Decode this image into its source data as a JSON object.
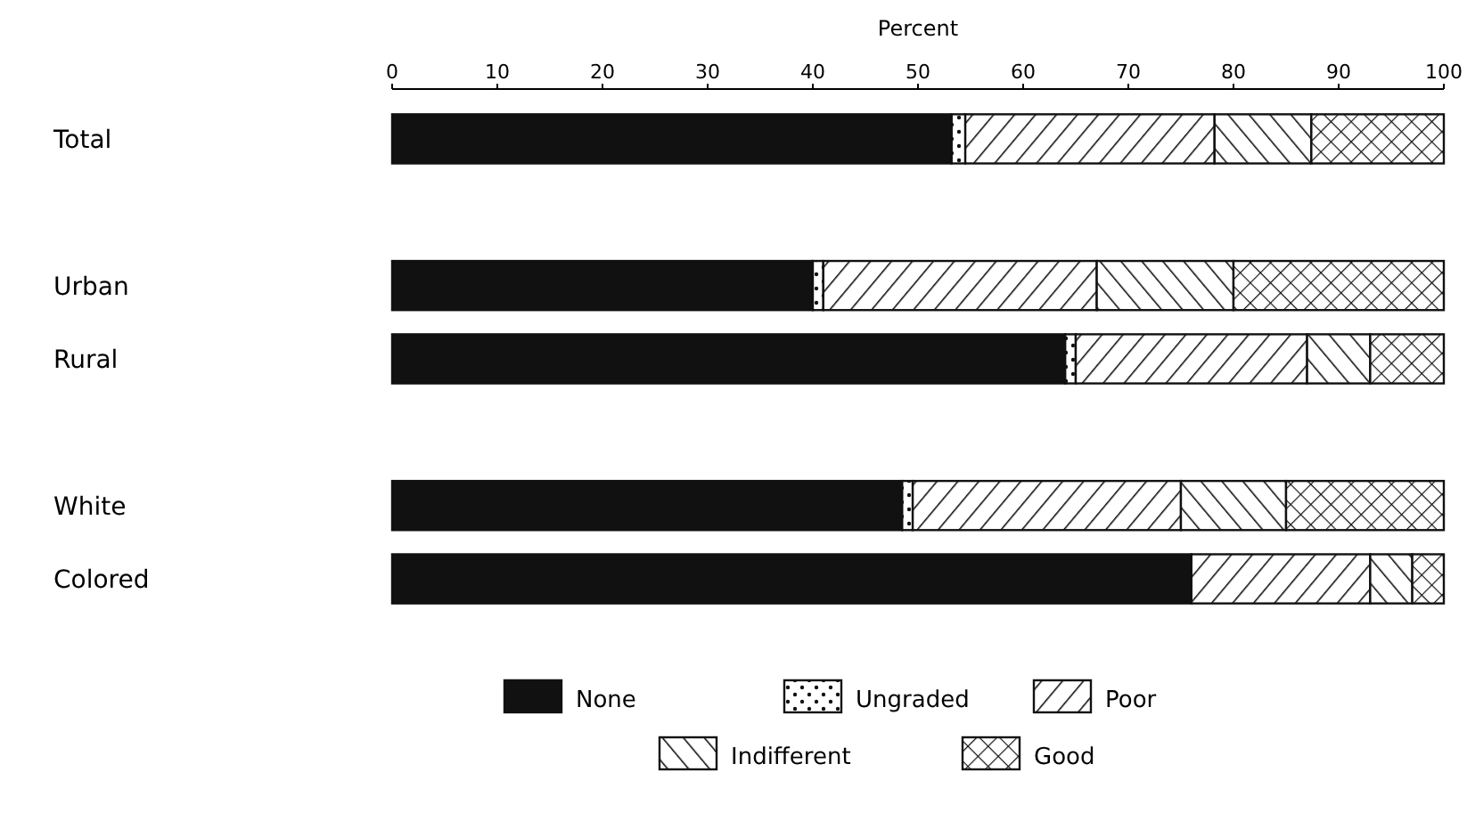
{
  "chart_data": {
    "type": "bar",
    "orientation": "horizontal",
    "stacked": true,
    "x2label": "Percent",
    "categories": [
      "Total",
      null,
      "Urban",
      "Rural",
      null,
      "White",
      "Colored"
    ],
    "series": [
      {
        "name": "None",
        "color": "#111111",
        "axis": "x2",
        "values": [
          53.2,
          null,
          40,
          64,
          null,
          48.5,
          76
        ]
      },
      {
        "name": "Ungraded",
        "color": "#ffffff",
        "axis": "x2",
        "values": [
          1.3,
          null,
          1,
          1,
          null,
          1,
          0
        ]
      },
      {
        "name": "Poor",
        "color": "#ffffff",
        "axis": "x2",
        "values": [
          23.7,
          null,
          26,
          22,
          null,
          25.5,
          17
        ]
      },
      {
        "name": "Indifferent",
        "color": "#ffffff",
        "axis": "x2",
        "values": [
          9.2,
          null,
          13,
          6,
          null,
          10,
          4
        ]
      },
      {
        "name": "Good",
        "color": "#ffffff",
        "axis": "x2",
        "values": [
          12.6,
          null,
          20,
          7,
          null,
          15,
          3
        ]
      }
    ],
    "x2lim": [
      0,
      100
    ],
    "x2ticks": [
      0,
      10,
      20,
      30,
      40,
      50,
      60,
      70,
      80,
      90,
      100
    ],
    "legend": "bottom"
  }
}
